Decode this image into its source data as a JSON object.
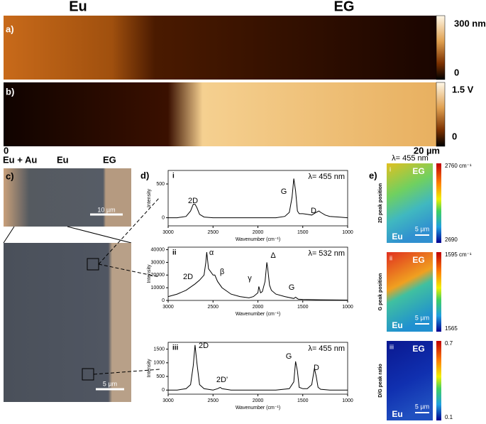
{
  "header": {
    "left": "Eu",
    "right": "EG"
  },
  "panel_a": {
    "label": "a)",
    "scale_max": "300 nm",
    "scale_min": "0"
  },
  "panel_b": {
    "label": "b)",
    "scale_max": "1.5 V",
    "scale_min": "0",
    "axis_start": "0",
    "axis_end": "20 µm"
  },
  "panel_c": {
    "label": "c)",
    "regions": [
      "Eu + Au",
      "Eu",
      "EG"
    ],
    "scale_top": "10 µm",
    "scale_bottom": "5 µm"
  },
  "panel_d": {
    "label": "d)"
  },
  "panel_e": {
    "label": "e)",
    "wavelength": "λ= 455 nm",
    "maps": [
      {
        "index": "i",
        "top": "EG",
        "bottom": "Eu",
        "scale": "5 µm",
        "quantity": "2D peak position",
        "max": "2760 cm⁻¹",
        "min": "2690"
      },
      {
        "index": "ii",
        "top": "EG",
        "bottom": "Eu",
        "scale": "5 µm",
        "quantity": "G peak position",
        "max": "1595 cm⁻¹",
        "min": "1565"
      },
      {
        "index": "iii",
        "top": "EG",
        "bottom": "Eu",
        "scale": "5 µm",
        "quantity": "D/G peak ratio",
        "max": "0.7",
        "min": "0.1"
      }
    ]
  },
  "chart_data": [
    {
      "type": "line",
      "title": "i",
      "subtitle": "λ= 455 nm",
      "x_label": "Wavenumber (cm⁻¹)",
      "y_label": "Intensity",
      "color": "#000000",
      "xlim": [
        3000,
        1000
      ],
      "xticks": [
        3000,
        2500,
        2000,
        1500,
        1000
      ],
      "ylim": [
        -120,
        700
      ],
      "yticks": [
        0,
        500
      ],
      "annotations": [
        "2D",
        "G",
        "D"
      ],
      "x": [
        3000,
        2900,
        2800,
        2750,
        2720,
        2700,
        2680,
        2650,
        2600,
        2500,
        2400,
        2300,
        2200,
        2100,
        2000,
        1900,
        1800,
        1700,
        1650,
        1620,
        1600,
        1580,
        1560,
        1540,
        1500,
        1450,
        1400,
        1350,
        1320,
        1300,
        1250,
        1200,
        1100,
        1000
      ],
      "values": [
        0,
        0,
        20,
        100,
        200,
        200,
        150,
        50,
        10,
        0,
        0,
        0,
        0,
        0,
        0,
        0,
        0,
        20,
        80,
        300,
        580,
        400,
        100,
        60,
        60,
        50,
        40,
        80,
        100,
        80,
        40,
        20,
        10,
        0
      ]
    },
    {
      "type": "line",
      "title": "ii",
      "subtitle": "λ= 532 nm",
      "x_label": "Wavenumber (cm⁻¹)",
      "y_label": "Intensity",
      "color": "#000000",
      "xlim": [
        3000,
        1000
      ],
      "xticks": [
        3000,
        2500,
        2000,
        1500,
        1000
      ],
      "ylim": [
        0,
        42000
      ],
      "yticks": [
        0,
        10000,
        20000,
        30000,
        40000
      ],
      "annotations": [
        "2D",
        "α",
        "β",
        "γ",
        "Δ",
        "G"
      ],
      "x": [
        3000,
        2900,
        2800,
        2700,
        2650,
        2600,
        2580,
        2570,
        2550,
        2500,
        2480,
        2450,
        2400,
        2300,
        2200,
        2100,
        2050,
        2000,
        1990,
        1970,
        1950,
        1920,
        1900,
        1890,
        1870,
        1850,
        1800,
        1700,
        1600,
        1580,
        1550,
        1500,
        1300,
        1000
      ],
      "values": [
        3000,
        5000,
        8000,
        13000,
        16000,
        20000,
        30000,
        38000,
        25000,
        20000,
        20000,
        15000,
        10000,
        5000,
        3000,
        2000,
        3000,
        6000,
        11000,
        6000,
        7000,
        15000,
        30000,
        25000,
        12000,
        8000,
        5000,
        3000,
        1500,
        2500,
        1000,
        800,
        500,
        300
      ]
    },
    {
      "type": "line",
      "title": "iii",
      "subtitle": "λ= 455 nm",
      "x_label": "Wavenumber (cm⁻¹)",
      "y_label": "Intensity",
      "color": "#000000",
      "xlim": [
        3000,
        1000
      ],
      "xticks": [
        3000,
        2500,
        2000,
        1500,
        1000
      ],
      "ylim": [
        -150,
        1750
      ],
      "yticks": [
        0,
        500,
        1000,
        1500
      ],
      "annotations": [
        "2D",
        "2D'",
        "G",
        "D"
      ],
      "x": [
        3000,
        2900,
        2800,
        2750,
        2720,
        2700,
        2680,
        2650,
        2600,
        2500,
        2450,
        2420,
        2400,
        2300,
        2000,
        1800,
        1650,
        1600,
        1580,
        1560,
        1540,
        1500,
        1450,
        1400,
        1370,
        1350,
        1330,
        1300,
        1200,
        1000
      ],
      "values": [
        0,
        0,
        50,
        200,
        900,
        1650,
        1000,
        200,
        50,
        0,
        50,
        100,
        50,
        0,
        0,
        0,
        50,
        300,
        1050,
        700,
        100,
        50,
        50,
        200,
        800,
        500,
        100,
        30,
        0,
        0
      ]
    }
  ]
}
